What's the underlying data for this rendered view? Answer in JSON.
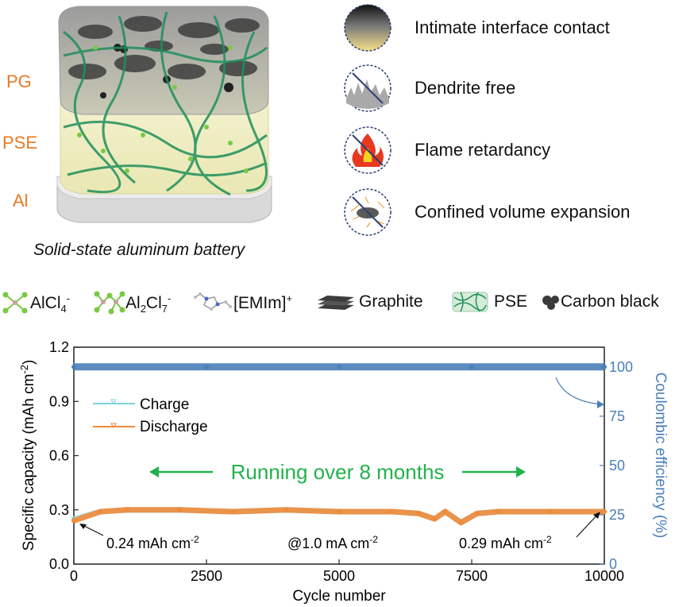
{
  "schematic": {
    "layers": [
      "PG",
      "PSE",
      "Al"
    ],
    "caption": "Solid-state aluminum battery"
  },
  "features": [
    {
      "label": "Intimate interface contact",
      "icon": "gradient-interface-icon"
    },
    {
      "label": "Dendrite free",
      "icon": "dendrite-crossed-icon"
    },
    {
      "label": "Flame retardancy",
      "icon": "flame-crossed-icon"
    },
    {
      "label": "Confined volume expansion",
      "icon": "expansion-crossed-icon"
    }
  ],
  "species_legend": [
    {
      "label": "AlCl4-",
      "icon": "alcl4-molecule-icon"
    },
    {
      "label": "Al2Cl7-",
      "icon": "al2cl7-molecule-icon"
    },
    {
      "label": "[EMIm]+",
      "icon": "emim-molecule-icon"
    },
    {
      "label": "Graphite",
      "icon": "graphite-stack-icon"
    },
    {
      "label": "PSE",
      "icon": "pse-network-icon"
    },
    {
      "label": "Carbon black",
      "icon": "carbon-black-icon"
    }
  ],
  "chart_data": {
    "type": "scatter",
    "xlabel": "Cycle number",
    "ylabel": "Specific capacity (mAh cm-2)",
    "y2label": "Coulombic efficiency (%)",
    "xlim": [
      0,
      10000
    ],
    "ylim": [
      0,
      1.2
    ],
    "y2lim": [
      0,
      110
    ],
    "xticks": [
      "0",
      "2500",
      "5000",
      "7500",
      "10000"
    ],
    "yticks": [
      "0.0",
      "0.3",
      "0.6",
      "0.9",
      "1.2"
    ],
    "y2ticks": [
      "0",
      "25",
      "50",
      "75",
      "100"
    ],
    "legend": [
      "Charge",
      "Discharge"
    ],
    "legend_position": "upper-left",
    "colors": {
      "charge": "#7fd3da",
      "discharge": "#ef8a3a",
      "efficiency": "#4a7fb8",
      "arrow": "#22b24c"
    },
    "series": [
      {
        "name": "Charge",
        "axis": "left",
        "x": [
          0,
          500,
          1000,
          2000,
          3000,
          4000,
          5000,
          6000,
          6500,
          6800,
          7000,
          7300,
          7600,
          8000,
          9000,
          10000
        ],
        "y": [
          0.25,
          0.29,
          0.3,
          0.3,
          0.29,
          0.3,
          0.29,
          0.29,
          0.28,
          0.25,
          0.29,
          0.23,
          0.28,
          0.29,
          0.29,
          0.29
        ]
      },
      {
        "name": "Discharge",
        "axis": "left",
        "x": [
          0,
          500,
          1000,
          2000,
          3000,
          4000,
          5000,
          6000,
          6500,
          6800,
          7000,
          7300,
          7600,
          8000,
          9000,
          10000
        ],
        "y": [
          0.24,
          0.29,
          0.3,
          0.3,
          0.29,
          0.3,
          0.29,
          0.29,
          0.28,
          0.25,
          0.29,
          0.23,
          0.28,
          0.29,
          0.29,
          0.29
        ]
      },
      {
        "name": "Coulombic efficiency",
        "axis": "right",
        "x": [
          0,
          2500,
          5000,
          7500,
          10000
        ],
        "y": [
          100,
          100,
          100,
          100,
          100
        ]
      }
    ],
    "annotations": {
      "banner": "Running over 8 months",
      "start_capacity": "0.24 mAh cm-2",
      "rate": "@1.0 mA cm-2",
      "end_capacity": "0.29 mAh cm-2"
    }
  }
}
